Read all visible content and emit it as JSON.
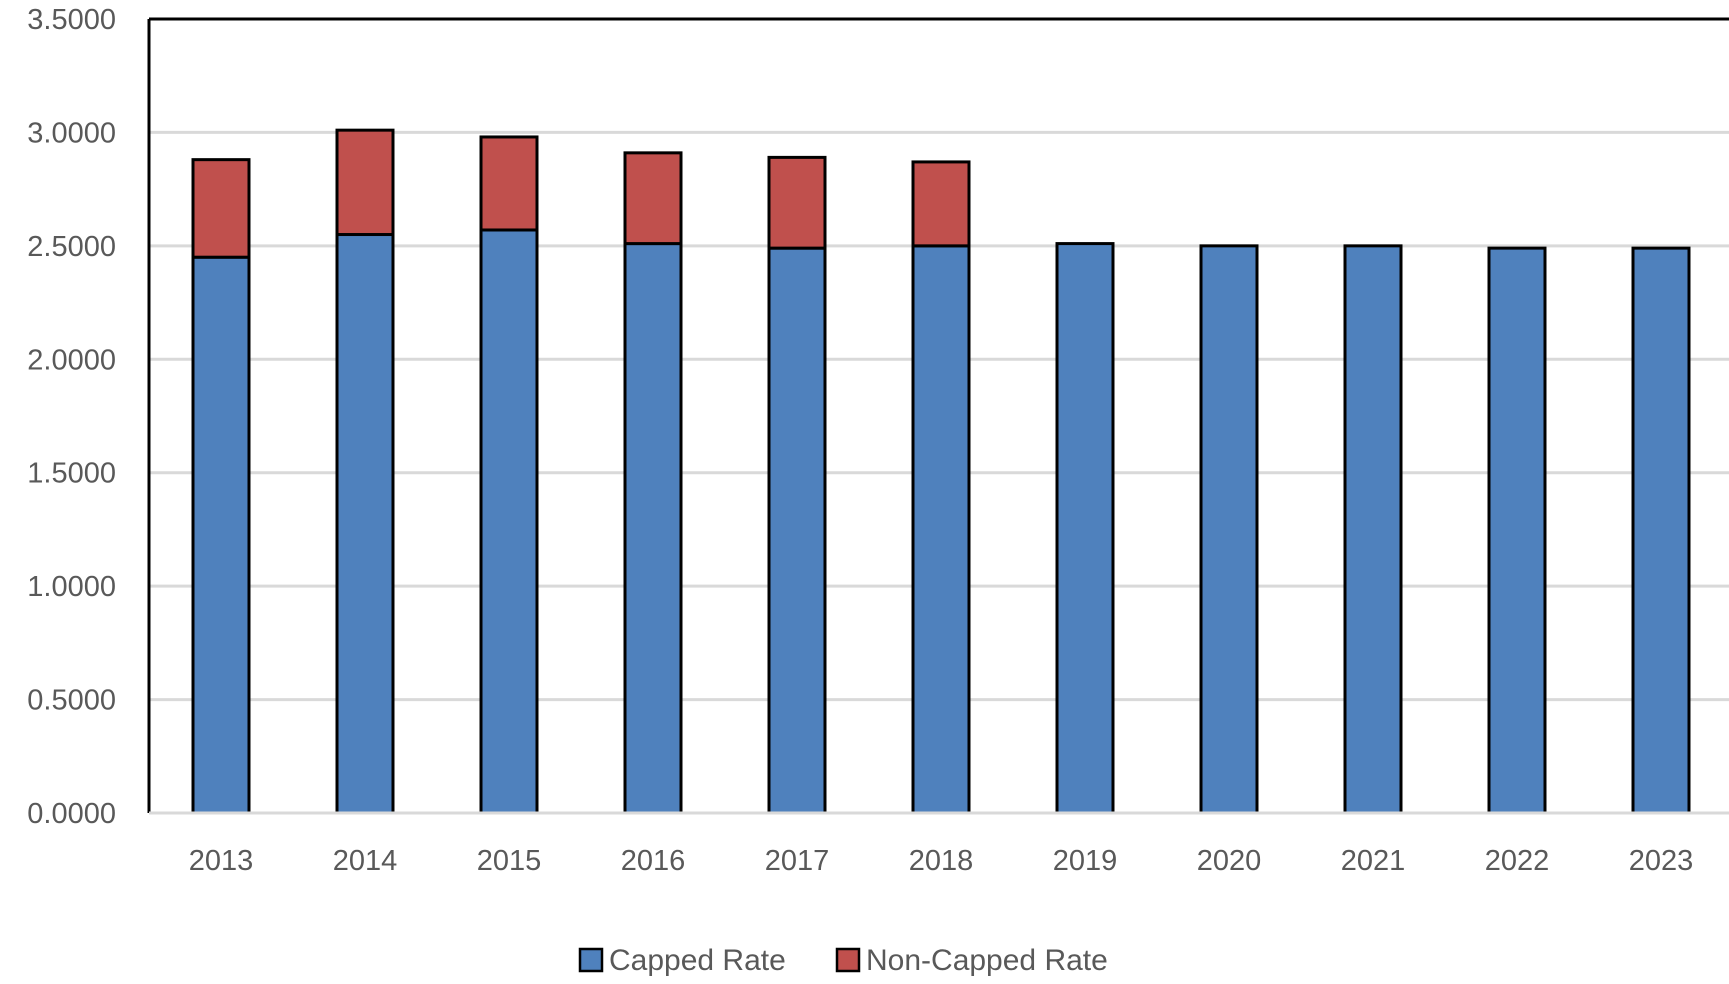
{
  "chart_data": {
    "type": "bar",
    "stacked": true,
    "categories": [
      "2013",
      "2014",
      "2015",
      "2016",
      "2017",
      "2018",
      "2019",
      "2020",
      "2021",
      "2022",
      "2023"
    ],
    "series": [
      {
        "name": "Capped Rate",
        "color": "#4F81BD",
        "values": [
          2.45,
          2.55,
          2.57,
          2.51,
          2.49,
          2.5,
          2.51,
          2.5,
          2.5,
          2.49,
          2.49
        ]
      },
      {
        "name": "Non-Capped Rate",
        "color": "#C0504D",
        "values": [
          0.43,
          0.46,
          0.41,
          0.4,
          0.4,
          0.37,
          0,
          0,
          0,
          0,
          0
        ]
      }
    ],
    "ylim": [
      0,
      3.5
    ],
    "yticks": [
      "0.0000",
      "0.5000",
      "1.0000",
      "1.5000",
      "2.0000",
      "2.5000",
      "3.0000",
      "3.5000"
    ],
    "grid": true,
    "legend_position": "bottom"
  }
}
